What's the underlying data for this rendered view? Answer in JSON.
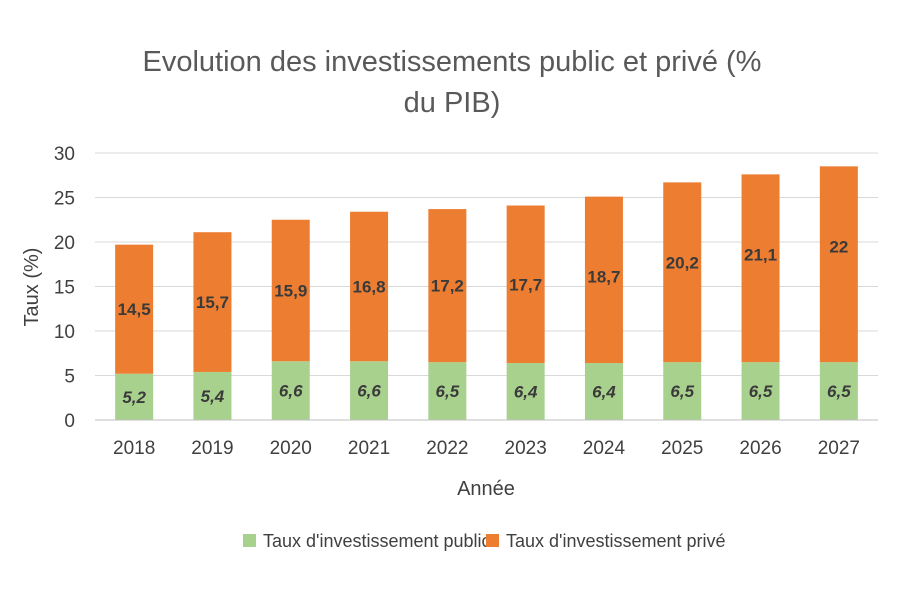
{
  "colors": {
    "public": "#a9d18e",
    "private": "#ed7d31",
    "grid": "#d9d9d9",
    "axis": "#bfbfbf"
  },
  "chart_data": {
    "type": "bar",
    "stacked": true,
    "title_lines": [
      "Evolution des investissements  public et privé (%",
      "du PIB)"
    ],
    "xlabel": "Année",
    "ylabel": "Taux (%)",
    "ylim": [
      0,
      30
    ],
    "yticks": [
      0,
      5,
      10,
      15,
      20,
      25,
      30
    ],
    "categories": [
      "2018",
      "2019",
      "2020",
      "2021",
      "2022",
      "2023",
      "2024",
      "2025",
      "2026",
      "2027"
    ],
    "series": [
      {
        "name": "Taux d'investissement public",
        "values": [
          5.2,
          5.4,
          6.6,
          6.6,
          6.5,
          6.4,
          6.4,
          6.5,
          6.5,
          6.5
        ],
        "labels": [
          "5,2",
          "5,4",
          "6,6",
          "6,6",
          "6,5",
          "6,4",
          "6,4",
          "6,5",
          "6,5",
          "6,5"
        ]
      },
      {
        "name": "Taux d'investissement privé",
        "values": [
          14.5,
          15.7,
          15.9,
          16.8,
          17.2,
          17.7,
          18.7,
          20.2,
          21.1,
          22
        ],
        "labels": [
          "14,5",
          "15,7",
          "15,9",
          "16,8",
          "17,2",
          "17,7",
          "18,7",
          "20,2",
          "21,1",
          "22"
        ]
      }
    ],
    "legend_position": "bottom",
    "grid": true
  }
}
